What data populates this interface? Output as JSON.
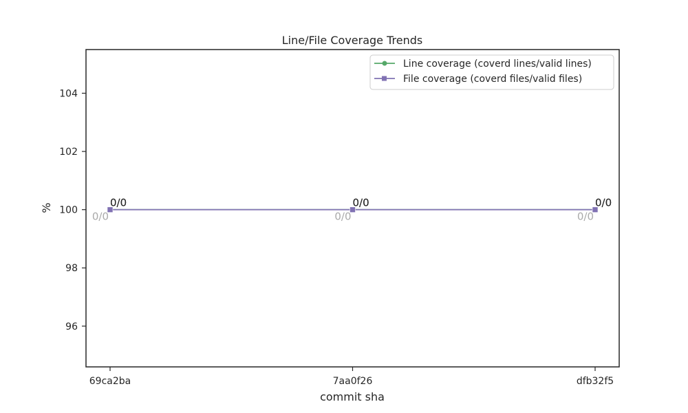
{
  "chart_data": {
    "type": "line",
    "title": "Line/File Coverage Trends",
    "xlabel": "commit sha",
    "ylabel": "%",
    "categories": [
      "69ca2ba",
      "7aa0f26",
      "dfb32f5"
    ],
    "ylim": [
      94.6,
      105.5
    ],
    "yticks": [
      96,
      98,
      100,
      102,
      104
    ],
    "grid": false,
    "legend_position": "top-right",
    "series": [
      {
        "name": "Line coverage (coverd lines/valid lines)",
        "values": [
          100,
          100,
          100
        ],
        "labels": [
          "0/0",
          "0/0",
          "0/0"
        ],
        "marker": "circle",
        "color": "#55a868"
      },
      {
        "name": "File coverage (coverd files/valid files)",
        "values": [
          100,
          100,
          100
        ],
        "labels": [
          "0/0",
          "0/0",
          "0/0"
        ],
        "marker": "square",
        "color": "#8172b3"
      }
    ],
    "extra_labels": [
      "0/0",
      "0/0",
      "0/0"
    ],
    "extra_label_color": "#aaaaaa",
    "text_color": "#262626"
  }
}
